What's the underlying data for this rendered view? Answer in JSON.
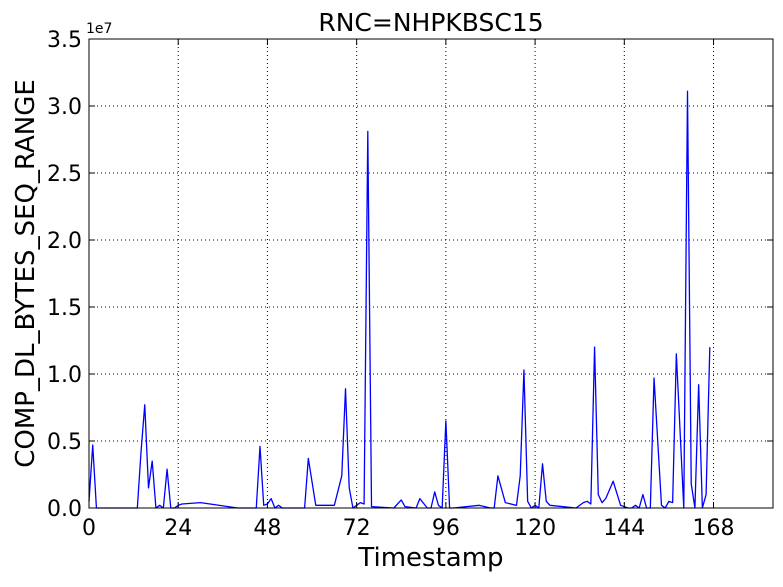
{
  "chart_data": {
    "type": "line",
    "title": "RNC=NHPKBSC15",
    "xlabel": "Timestamp",
    "ylabel": "COMP_DL_BYTES_SEQ_RANGE",
    "y_offset_label": "1e7",
    "xlim": [
      0,
      184
    ],
    "ylim": [
      0,
      3.5
    ],
    "y_unit_multiplier": 10000000,
    "xticks": [
      0,
      24,
      48,
      72,
      96,
      120,
      144,
      168
    ],
    "xtick_labels": [
      "0",
      "24",
      "48",
      "72",
      "96",
      "120",
      "144",
      "168"
    ],
    "yticks": [
      0,
      0.5,
      1.0,
      1.5,
      2.0,
      2.5,
      3.0,
      3.5
    ],
    "ytick_labels": [
      "0.0",
      "0.5",
      "1.0",
      "1.5",
      "2.0",
      "2.5",
      "3.0",
      "3.5"
    ],
    "grid": true,
    "series": [
      {
        "color": "#0000ff",
        "x": [
          0,
          1,
          2,
          13,
          14,
          15,
          16,
          17,
          18,
          19,
          20,
          21,
          22,
          23,
          24,
          25,
          30,
          40,
          44,
          45,
          46,
          47,
          48,
          49,
          50,
          51,
          52,
          58,
          59,
          61,
          66,
          68,
          69,
          70,
          71,
          72,
          73,
          74,
          75,
          76,
          82,
          84,
          85,
          88,
          89,
          91,
          92,
          93,
          94,
          95,
          96,
          97,
          98,
          105,
          108,
          109,
          110,
          112,
          115,
          116,
          117,
          118,
          119,
          120,
          121,
          122,
          123,
          124,
          131,
          133,
          134,
          135,
          136,
          137,
          138,
          139,
          141,
          143,
          145,
          146,
          147,
          148,
          149,
          150,
          151,
          152,
          154,
          155,
          156,
          157,
          158,
          160,
          161,
          162,
          163,
          164,
          165,
          166,
          167
        ],
        "values": [
          0.05,
          0.47,
          0.0,
          0.0,
          0.42,
          0.77,
          0.15,
          0.35,
          0.0,
          0.02,
          0.0,
          0.29,
          0.0,
          0.0,
          0.02,
          0.03,
          0.04,
          0.0,
          0.0,
          0.0,
          0.46,
          0.02,
          0.03,
          0.07,
          0.0,
          0.02,
          0.0,
          0.0,
          0.37,
          0.02,
          0.02,
          0.24,
          0.89,
          0.15,
          0.0,
          0.02,
          0.04,
          0.03,
          2.81,
          0.01,
          0.0,
          0.06,
          0.01,
          0.0,
          0.07,
          0.0,
          0.0,
          0.12,
          0.02,
          0.0,
          0.65,
          0.0,
          0.0,
          0.02,
          0.0,
          0.0,
          0.24,
          0.04,
          0.02,
          0.24,
          1.03,
          0.05,
          0.0,
          0.02,
          0.0,
          0.33,
          0.05,
          0.02,
          0.0,
          0.04,
          0.05,
          0.03,
          1.2,
          0.1,
          0.04,
          0.07,
          0.2,
          0.02,
          0.0,
          0.0,
          0.02,
          0.0,
          0.1,
          0.0,
          0.0,
          0.97,
          0.02,
          0.0,
          0.05,
          0.04,
          1.15,
          0.0,
          3.11,
          0.18,
          0.0,
          0.92,
          0.0,
          0.1,
          1.2
        ]
      }
    ]
  }
}
